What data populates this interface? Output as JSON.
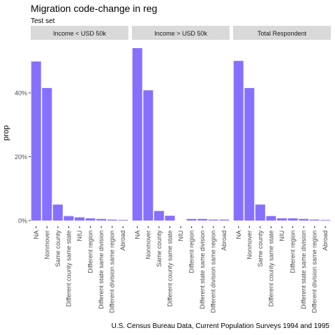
{
  "chart_data": {
    "type": "bar",
    "title": "Migration code-change in reg",
    "subtitle": "Test set",
    "caption": "U.S. Census Bureau Data, Current Population Surveys 1994 and 1995",
    "xlabel": "",
    "ylabel": "prop",
    "ylim": [
      0,
      0.55
    ],
    "yticks": [
      0,
      0.2,
      0.4
    ],
    "ytick_labels": [
      "0%",
      "20%",
      "40%"
    ],
    "grid": false,
    "bar_color": "#8670FF",
    "strip_color": "#D9D9D9",
    "categories": [
      "NA",
      "Nonmover",
      "Same county",
      "Different county same state",
      "NIU",
      "Different region",
      "Different state same division",
      "Different division same region",
      "Abroad"
    ],
    "facets": [
      {
        "label": "Income < USD 50k",
        "values": [
          0.498,
          0.415,
          0.05,
          0.014,
          0.01,
          0.007,
          0.005,
          0.003,
          0.002
        ]
      },
      {
        "label": "Income > USD 50k",
        "values": [
          0.54,
          0.408,
          0.03,
          0.015,
          0.0,
          0.005,
          0.005,
          0.003,
          0.003
        ]
      },
      {
        "label": "Total Respondent",
        "values": [
          0.5,
          0.415,
          0.05,
          0.014,
          0.007,
          0.007,
          0.005,
          0.003,
          0.002
        ]
      }
    ]
  }
}
